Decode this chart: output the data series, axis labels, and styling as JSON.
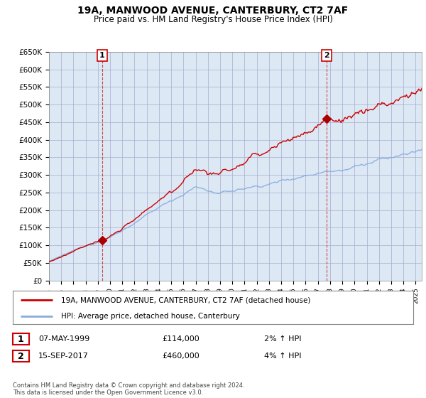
{
  "title": "19A, MANWOOD AVENUE, CANTERBURY, CT2 7AF",
  "subtitle": "Price paid vs. HM Land Registry's House Price Index (HPI)",
  "ylabel_ticks": [
    "£0",
    "£50K",
    "£100K",
    "£150K",
    "£200K",
    "£250K",
    "£300K",
    "£350K",
    "£400K",
    "£450K",
    "£500K",
    "£550K",
    "£600K",
    "£650K"
  ],
  "ytick_values": [
    0,
    50000,
    100000,
    150000,
    200000,
    250000,
    300000,
    350000,
    400000,
    450000,
    500000,
    550000,
    600000,
    650000
  ],
  "price_line_color": "#cc0000",
  "hpi_line_color": "#88aadd",
  "marker_color": "#aa0000",
  "sale1_x": 1999.35,
  "sale1_price": 114000,
  "sale2_x": 2017.71,
  "sale2_price": 460000,
  "legend_line1": "19A, MANWOOD AVENUE, CANTERBURY, CT2 7AF (detached house)",
  "legend_line2": "HPI: Average price, detached house, Canterbury",
  "annotation1_date": "07-MAY-1999",
  "annotation1_price": "£114,000",
  "annotation1_hpi": "2% ↑ HPI",
  "annotation2_date": "15-SEP-2017",
  "annotation2_price": "£460,000",
  "annotation2_hpi": "4% ↑ HPI",
  "footer": "Contains HM Land Registry data © Crown copyright and database right 2024.\nThis data is licensed under the Open Government Licence v3.0.",
  "background_color": "#ffffff",
  "plot_bg_color": "#dce9f5",
  "grid_color": "#aaaacc",
  "xmin": 1995,
  "xmax": 2025.5,
  "ymin": 0,
  "ymax": 650000
}
